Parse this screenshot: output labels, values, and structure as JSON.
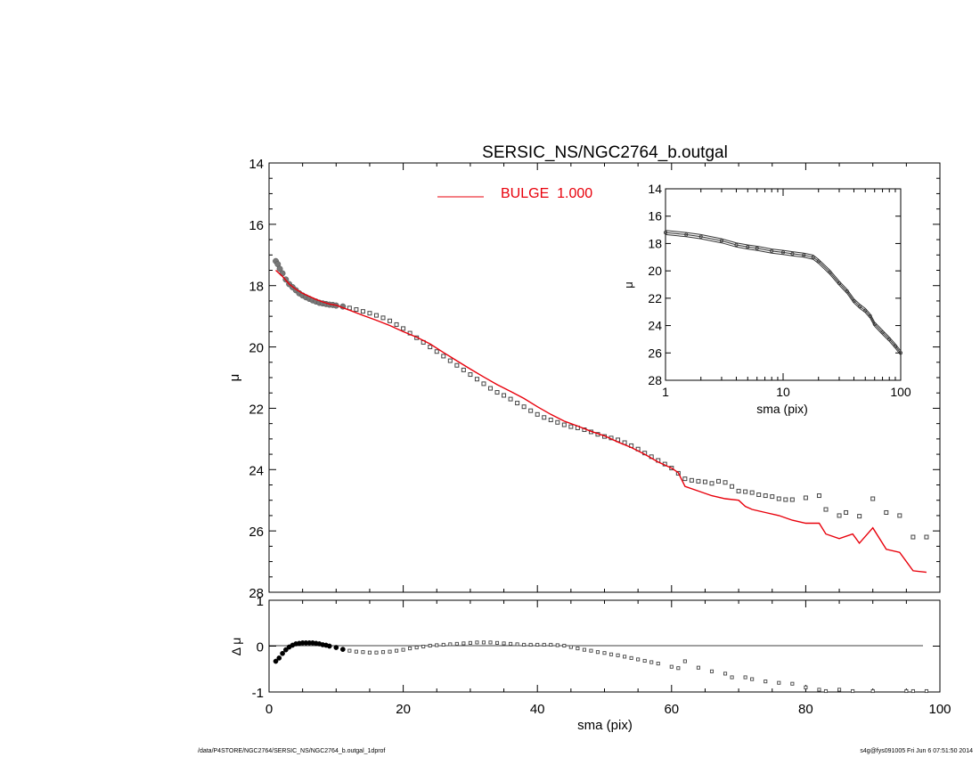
{
  "chart_data": [
    {
      "type": "scatter",
      "panel": "main",
      "title": "SERSIC_NS/NGC2764_b.outgal",
      "ylabel": "μ",
      "xlim": [
        0,
        100
      ],
      "ylim": [
        28,
        14
      ],
      "y_inverted": true,
      "yticks": [
        14,
        16,
        18,
        20,
        22,
        24,
        26,
        28
      ],
      "legend": {
        "label": "BULGE  1.000",
        "color": "#e8000b",
        "placement": "top-center"
      },
      "series": [
        {
          "kind": "points",
          "color": "#555555",
          "points": [
            [
              1.0,
              17.2
            ],
            [
              1.3,
              17.3
            ],
            [
              1.6,
              17.45
            ],
            [
              2.0,
              17.6
            ],
            [
              2.5,
              17.8
            ],
            [
              3.0,
              17.95
            ],
            [
              3.5,
              18.05
            ],
            [
              4.0,
              18.15
            ],
            [
              4.5,
              18.25
            ],
            [
              5.0,
              18.32
            ],
            [
              5.5,
              18.38
            ],
            [
              6.0,
              18.43
            ],
            [
              6.5,
              18.48
            ],
            [
              7.0,
              18.52
            ],
            [
              7.5,
              18.56
            ],
            [
              8.0,
              18.58
            ],
            [
              8.5,
              18.6
            ],
            [
              9.0,
              18.62
            ],
            [
              9.5,
              18.63
            ],
            [
              10.0,
              18.65
            ],
            [
              11,
              18.68
            ],
            [
              12,
              18.73
            ],
            [
              13,
              18.78
            ],
            [
              14,
              18.84
            ],
            [
              15,
              18.9
            ],
            [
              16,
              18.97
            ],
            [
              17,
              19.05
            ],
            [
              18,
              19.15
            ],
            [
              19,
              19.27
            ],
            [
              20,
              19.4
            ],
            [
              21,
              19.55
            ],
            [
              22,
              19.7
            ],
            [
              23,
              19.85
            ],
            [
              24,
              20.0
            ],
            [
              25,
              20.15
            ],
            [
              26,
              20.3
            ],
            [
              27,
              20.45
            ],
            [
              28,
              20.6
            ],
            [
              29,
              20.75
            ],
            [
              30,
              20.9
            ],
            [
              31,
              21.05
            ],
            [
              32,
              21.2
            ],
            [
              33,
              21.35
            ],
            [
              34,
              21.48
            ],
            [
              35,
              21.58
            ],
            [
              36,
              21.7
            ],
            [
              37,
              21.83
            ],
            [
              38,
              21.95
            ],
            [
              39,
              22.08
            ],
            [
              40,
              22.2
            ],
            [
              41,
              22.3
            ],
            [
              42,
              22.38
            ],
            [
              43,
              22.46
            ],
            [
              44,
              22.54
            ],
            [
              45,
              22.6
            ],
            [
              46,
              22.64
            ],
            [
              47,
              22.7
            ],
            [
              48,
              22.77
            ],
            [
              49,
              22.85
            ],
            [
              50,
              22.92
            ],
            [
              51,
              22.97
            ],
            [
              52,
              23.03
            ],
            [
              53,
              23.12
            ],
            [
              54,
              23.22
            ],
            [
              55,
              23.33
            ],
            [
              56,
              23.46
            ],
            [
              57,
              23.58
            ],
            [
              58,
              23.7
            ],
            [
              59,
              23.82
            ],
            [
              60,
              23.95
            ],
            [
              61,
              24.12
            ],
            [
              62,
              24.3
            ],
            [
              63,
              24.35
            ],
            [
              64,
              24.38
            ],
            [
              65,
              24.4
            ],
            [
              66,
              24.45
            ],
            [
              67,
              24.38
            ],
            [
              68,
              24.42
            ],
            [
              69,
              24.55
            ],
            [
              70,
              24.7
            ],
            [
              71,
              24.72
            ],
            [
              72,
              24.75
            ],
            [
              73,
              24.82
            ],
            [
              74,
              24.85
            ],
            [
              75,
              24.88
            ],
            [
              76,
              24.95
            ],
            [
              77,
              24.98
            ],
            [
              78,
              24.98
            ],
            [
              80,
              24.92
            ],
            [
              82,
              24.85
            ],
            [
              83,
              25.3
            ],
            [
              85,
              25.5
            ],
            [
              86,
              25.4
            ],
            [
              88,
              25.52
            ],
            [
              90,
              24.95
            ],
            [
              92,
              25.4
            ],
            [
              94,
              25.5
            ],
            [
              96,
              26.2
            ],
            [
              98,
              26.2
            ]
          ]
        },
        {
          "kind": "line",
          "name": "BULGE  1.000",
          "color": "#e8000b",
          "points": [
            [
              1.0,
              17.5
            ],
            [
              2,
              17.7
            ],
            [
              3,
              17.95
            ],
            [
              4,
              18.12
            ],
            [
              5,
              18.25
            ],
            [
              6,
              18.35
            ],
            [
              7,
              18.45
            ],
            [
              8,
              18.53
            ],
            [
              9,
              18.6
            ],
            [
              10,
              18.64
            ],
            [
              12,
              18.8
            ],
            [
              14,
              18.97
            ],
            [
              16,
              19.13
            ],
            [
              18,
              19.3
            ],
            [
              20,
              19.5
            ],
            [
              22,
              19.68
            ],
            [
              24,
              19.9
            ],
            [
              26,
              20.18
            ],
            [
              28,
              20.45
            ],
            [
              30,
              20.72
            ],
            [
              32,
              20.98
            ],
            [
              34,
              21.23
            ],
            [
              36,
              21.45
            ],
            [
              38,
              21.68
            ],
            [
              40,
              21.95
            ],
            [
              42,
              22.2
            ],
            [
              44,
              22.42
            ],
            [
              46,
              22.58
            ],
            [
              48,
              22.75
            ],
            [
              50,
              22.9
            ],
            [
              52,
              23.1
            ],
            [
              54,
              23.28
            ],
            [
              56,
              23.5
            ],
            [
              58,
              23.75
            ],
            [
              60,
              23.95
            ],
            [
              61,
              24.1
            ],
            [
              62,
              24.55
            ],
            [
              64,
              24.7
            ],
            [
              66,
              24.85
            ],
            [
              68,
              24.95
            ],
            [
              70,
              25.0
            ],
            [
              71,
              25.2
            ],
            [
              72,
              25.3
            ],
            [
              74,
              25.4
            ],
            [
              76,
              25.5
            ],
            [
              78,
              25.65
            ],
            [
              80,
              25.75
            ],
            [
              82,
              25.75
            ],
            [
              83,
              26.1
            ],
            [
              85,
              26.25
            ],
            [
              87,
              26.1
            ],
            [
              88,
              26.4
            ],
            [
              90,
              25.9
            ],
            [
              92,
              26.6
            ],
            [
              94,
              26.7
            ],
            [
              96,
              27.3
            ],
            [
              98,
              27.35
            ]
          ]
        }
      ]
    },
    {
      "type": "line",
      "panel": "inset",
      "xlabel": "sma (pix)",
      "ylabel": "μ",
      "xscale": "log",
      "xlim": [
        1,
        100
      ],
      "ylim": [
        28,
        14
      ],
      "y_inverted": true,
      "yticks": [
        14,
        16,
        18,
        20,
        22,
        24,
        26,
        28
      ],
      "xticks": [
        1,
        10,
        100
      ],
      "series": [
        {
          "kind": "band",
          "color": "#000000",
          "points": [
            [
              1,
              17.2
            ],
            [
              1.5,
              17.35
            ],
            [
              2,
              17.5
            ],
            [
              3,
              17.8
            ],
            [
              4,
              18.1
            ],
            [
              5,
              18.25
            ],
            [
              6,
              18.35
            ],
            [
              8,
              18.55
            ],
            [
              10,
              18.65
            ],
            [
              12,
              18.75
            ],
            [
              15,
              18.85
            ],
            [
              18,
              19.0
            ],
            [
              20,
              19.3
            ],
            [
              25,
              20.1
            ],
            [
              30,
              20.9
            ],
            [
              35,
              21.5
            ],
            [
              40,
              22.2
            ],
            [
              45,
              22.6
            ],
            [
              50,
              22.9
            ],
            [
              55,
              23.3
            ],
            [
              60,
              23.9
            ],
            [
              70,
              24.5
            ],
            [
              80,
              25.0
            ],
            [
              90,
              25.5
            ],
            [
              100,
              26.0
            ]
          ]
        }
      ]
    },
    {
      "type": "scatter",
      "panel": "residual",
      "xlabel": "sma (pix)",
      "ylabel": "Δ μ",
      "xlim": [
        0,
        100
      ],
      "ylim": [
        -1,
        1
      ],
      "xticks": [
        0,
        20,
        40,
        60,
        80,
        100
      ],
      "yticks": [
        -1,
        0,
        1
      ],
      "series": [
        {
          "kind": "points",
          "color": "#555555",
          "points": [
            [
              1.0,
              -0.33
            ],
            [
              1.5,
              -0.26
            ],
            [
              2.0,
              -0.16
            ],
            [
              2.5,
              -0.08
            ],
            [
              3.0,
              -0.02
            ],
            [
              3.5,
              0.02
            ],
            [
              4.0,
              0.05
            ],
            [
              4.5,
              0.06
            ],
            [
              5.0,
              0.07
            ],
            [
              5.5,
              0.07
            ],
            [
              6.0,
              0.07
            ],
            [
              6.5,
              0.07
            ],
            [
              7.0,
              0.06
            ],
            [
              7.5,
              0.05
            ],
            [
              8.0,
              0.03
            ],
            [
              8.5,
              0.02
            ],
            [
              9.0,
              0.0
            ],
            [
              10,
              -0.03
            ],
            [
              11,
              -0.07
            ],
            [
              12,
              -0.1
            ],
            [
              13,
              -0.12
            ],
            [
              14,
              -0.13
            ],
            [
              15,
              -0.14
            ],
            [
              16,
              -0.14
            ],
            [
              17,
              -0.13
            ],
            [
              18,
              -0.12
            ],
            [
              19,
              -0.1
            ],
            [
              20,
              -0.08
            ],
            [
              21,
              -0.05
            ],
            [
              22,
              -0.03
            ],
            [
              23,
              -0.01
            ],
            [
              24,
              0.01
            ],
            [
              25,
              0.02
            ],
            [
              26,
              0.03
            ],
            [
              27,
              0.04
            ],
            [
              28,
              0.05
            ],
            [
              29,
              0.06
            ],
            [
              30,
              0.07
            ],
            [
              31,
              0.08
            ],
            [
              32,
              0.08
            ],
            [
              33,
              0.08
            ],
            [
              34,
              0.07
            ],
            [
              35,
              0.06
            ],
            [
              36,
              0.05
            ],
            [
              37,
              0.04
            ],
            [
              38,
              0.03
            ],
            [
              39,
              0.03
            ],
            [
              40,
              0.03
            ],
            [
              41,
              0.03
            ],
            [
              42,
              0.03
            ],
            [
              43,
              0.02
            ],
            [
              44,
              0.01
            ],
            [
              45,
              -0.02
            ],
            [
              46,
              -0.05
            ],
            [
              47,
              -0.08
            ],
            [
              48,
              -0.1
            ],
            [
              49,
              -0.13
            ],
            [
              50,
              -0.15
            ],
            [
              51,
              -0.18
            ],
            [
              52,
              -0.2
            ],
            [
              53,
              -0.23
            ],
            [
              54,
              -0.26
            ],
            [
              55,
              -0.29
            ],
            [
              56,
              -0.32
            ],
            [
              57,
              -0.35
            ],
            [
              58,
              -0.38
            ],
            [
              60,
              -0.45
            ],
            [
              61,
              -0.48
            ],
            [
              62,
              -0.33
            ],
            [
              64,
              -0.47
            ],
            [
              66,
              -0.55
            ],
            [
              68,
              -0.6
            ],
            [
              69,
              -0.68
            ],
            [
              71,
              -0.68
            ],
            [
              72,
              -0.72
            ],
            [
              74,
              -0.77
            ],
            [
              76,
              -0.8
            ],
            [
              78,
              -0.82
            ],
            [
              80,
              -0.9
            ],
            [
              82,
              -0.95
            ],
            [
              83,
              -1.0
            ],
            [
              85,
              -0.95
            ],
            [
              87,
              -1.0
            ],
            [
              90,
              -1.05
            ],
            [
              95,
              -1.05
            ],
            [
              96,
              -1.1
            ],
            [
              98,
              -1.1
            ]
          ]
        }
      ]
    }
  ],
  "footer": {
    "left": "/data/P4STORE/NGC2764/SERSIC_NS/NGC2764_b.outgal_1dprof",
    "right": "s4g@fys091005  Fri Jun  6 07:51:50 2014"
  }
}
